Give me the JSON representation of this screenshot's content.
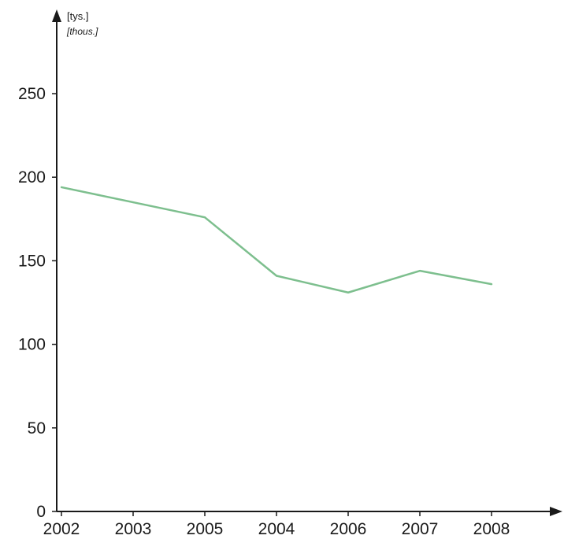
{
  "chart_data": {
    "type": "line",
    "y_unit": "[tys.]",
    "y_unit_translation": "[thous.]",
    "categories": [
      "2002",
      "2003",
      "2005",
      "2004",
      "2006",
      "2007",
      "2008"
    ],
    "series": [
      {
        "values": [
          194,
          185,
          176,
          141,
          131,
          144,
          136
        ]
      }
    ],
    "y_ticks": [
      0,
      50,
      100,
      150,
      200,
      250
    ],
    "ylim": [
      0,
      295
    ],
    "grid": false,
    "legend": false,
    "colors": {
      "line": "#7dbf8e",
      "axis": "#1a1a1a"
    }
  }
}
